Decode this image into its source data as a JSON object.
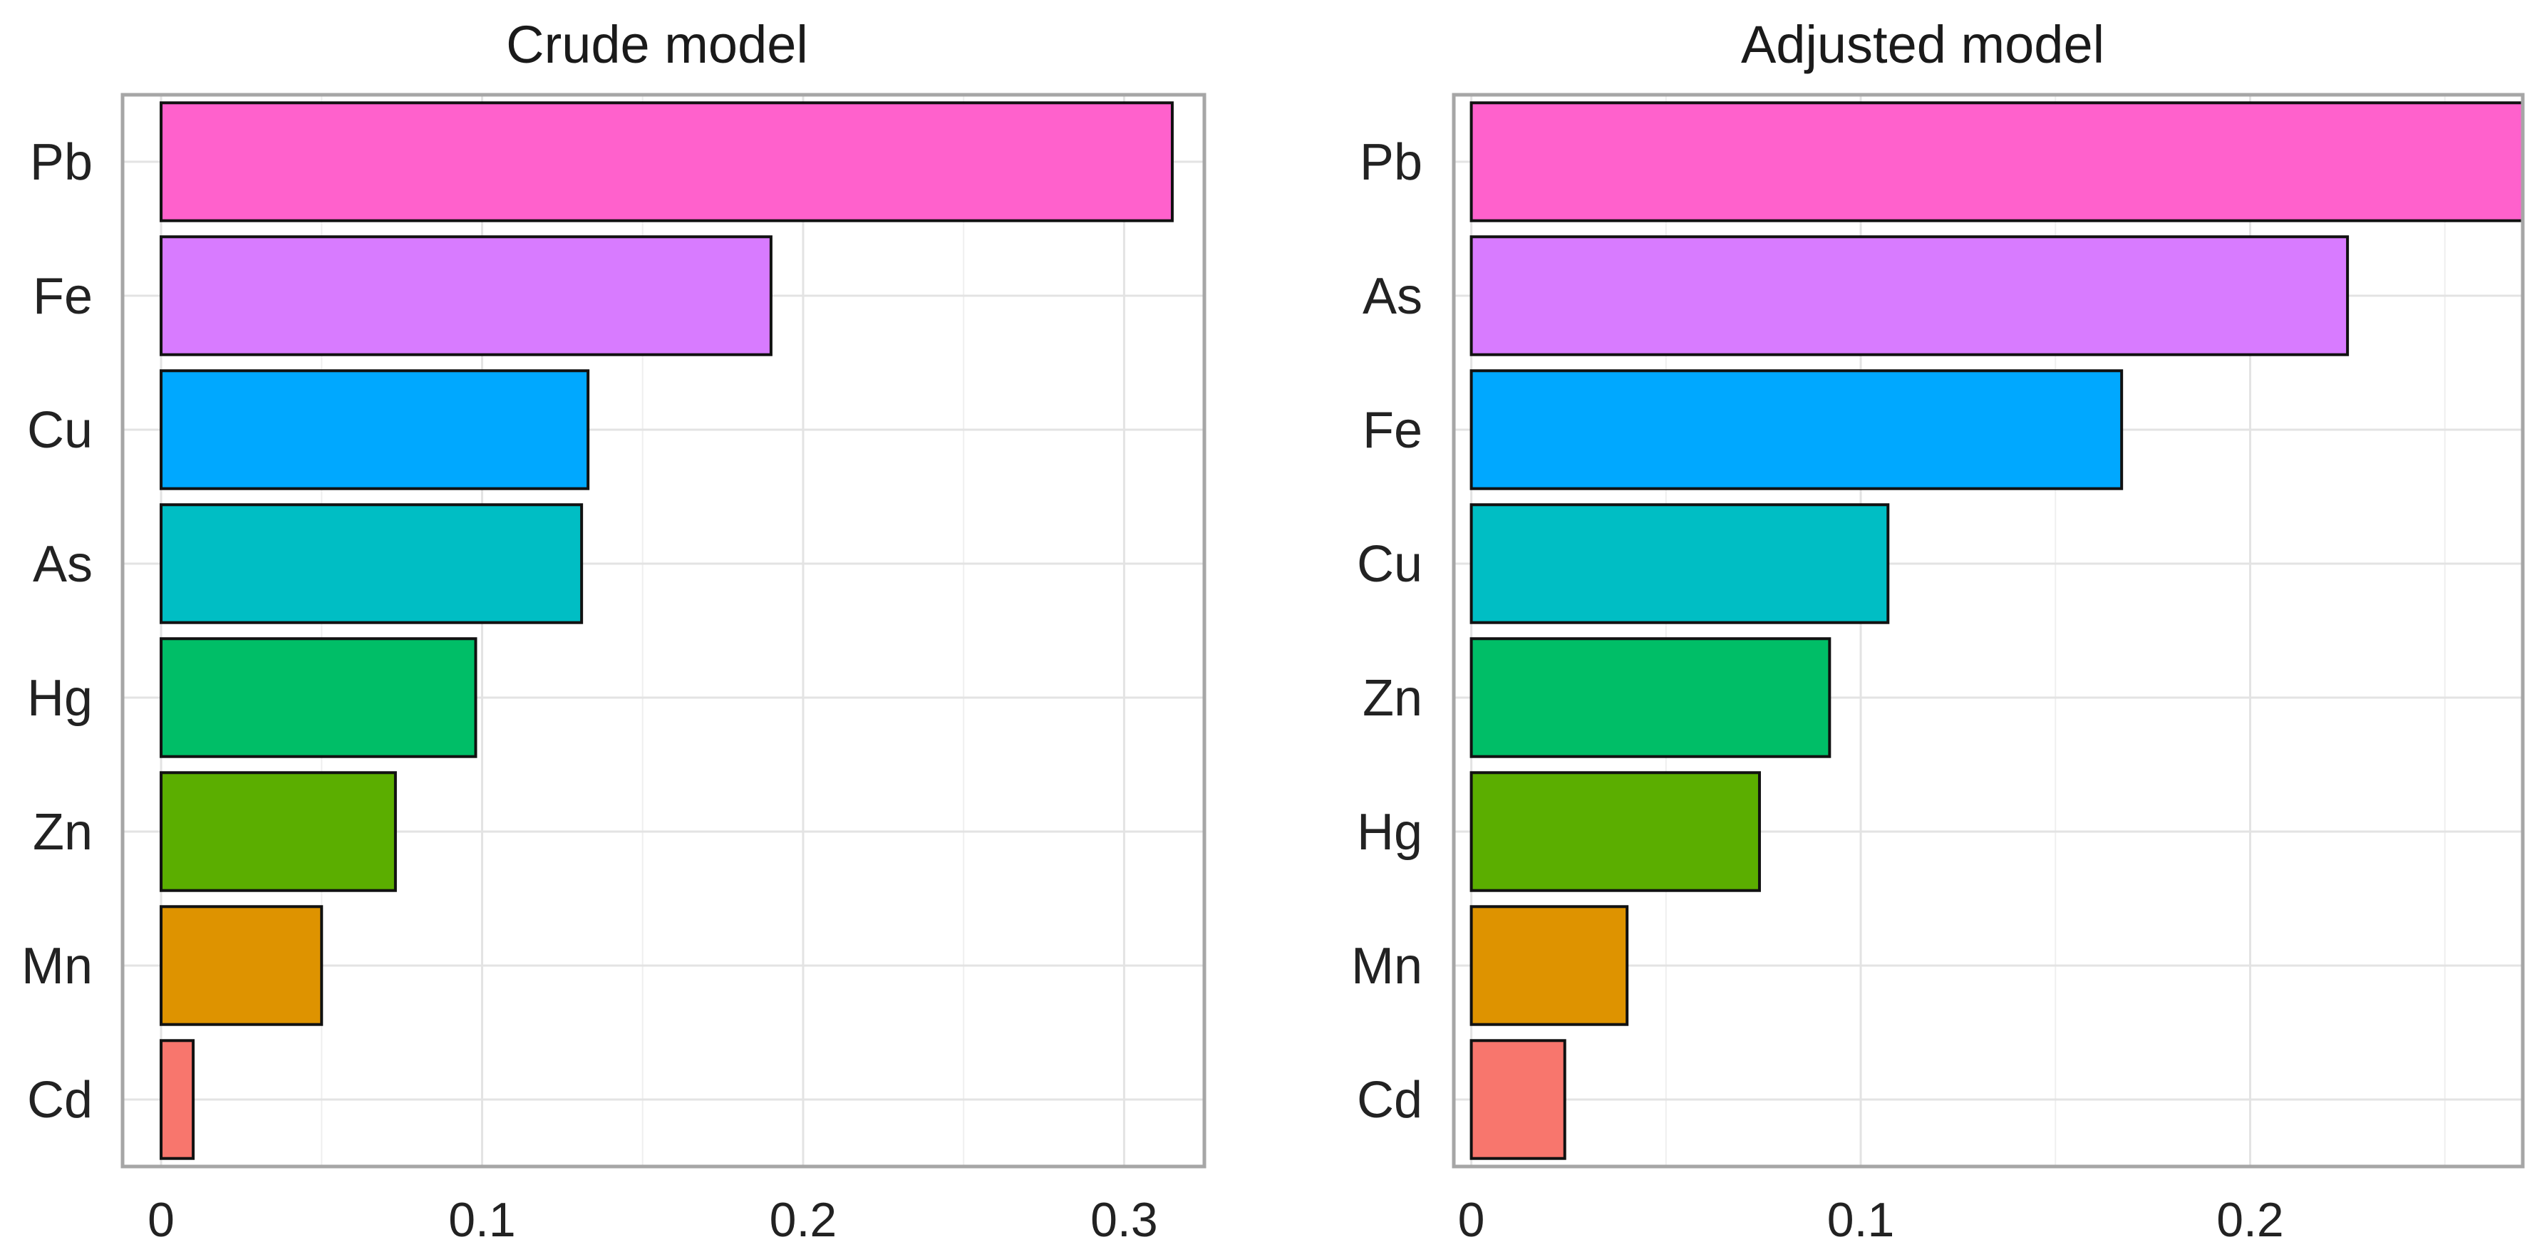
{
  "chart_data": [
    {
      "type": "bar",
      "orientation": "horizontal",
      "title": "Crude model",
      "xlabel": "",
      "ylabel": "",
      "categories": [
        "Pb",
        "Fe",
        "Cu",
        "As",
        "Hg",
        "Zn",
        "Mn",
        "Cd"
      ],
      "values": [
        0.315,
        0.19,
        0.133,
        0.131,
        0.098,
        0.073,
        0.05,
        0.01
      ],
      "colors": [
        "#FF61CC",
        "#D87BFF",
        "#00A8FF",
        "#00BEC4",
        "#00BE67",
        "#5BAE00",
        "#DE9300",
        "#F8766D"
      ],
      "xlim": [
        -0.012,
        0.325
      ],
      "xticks": [
        0,
        0.1,
        0.2,
        0.3
      ],
      "xtick_labels": [
        "0",
        "0.1",
        "0.2",
        "0.3"
      ],
      "grid": true,
      "legend": "none"
    },
    {
      "type": "bar",
      "orientation": "horizontal",
      "title": "Adjusted model",
      "xlabel": "",
      "ylabel": "",
      "categories": [
        "Pb",
        "As",
        "Fe",
        "Cu",
        "Zn",
        "Hg",
        "Mn",
        "Cd"
      ],
      "values": [
        0.27,
        0.225,
        0.167,
        0.107,
        0.092,
        0.074,
        0.04,
        0.024
      ],
      "colors": [
        "#FF61CC",
        "#D87BFF",
        "#00A8FF",
        "#00BEC4",
        "#00BE67",
        "#5BAE00",
        "#DE9300",
        "#F8766D"
      ],
      "xlim": [
        -0.0045,
        0.27
      ],
      "xticks": [
        0,
        0.1,
        0.2
      ],
      "xtick_labels": [
        "0",
        "0.1",
        "0.2"
      ],
      "grid": true,
      "legend": "none"
    }
  ]
}
